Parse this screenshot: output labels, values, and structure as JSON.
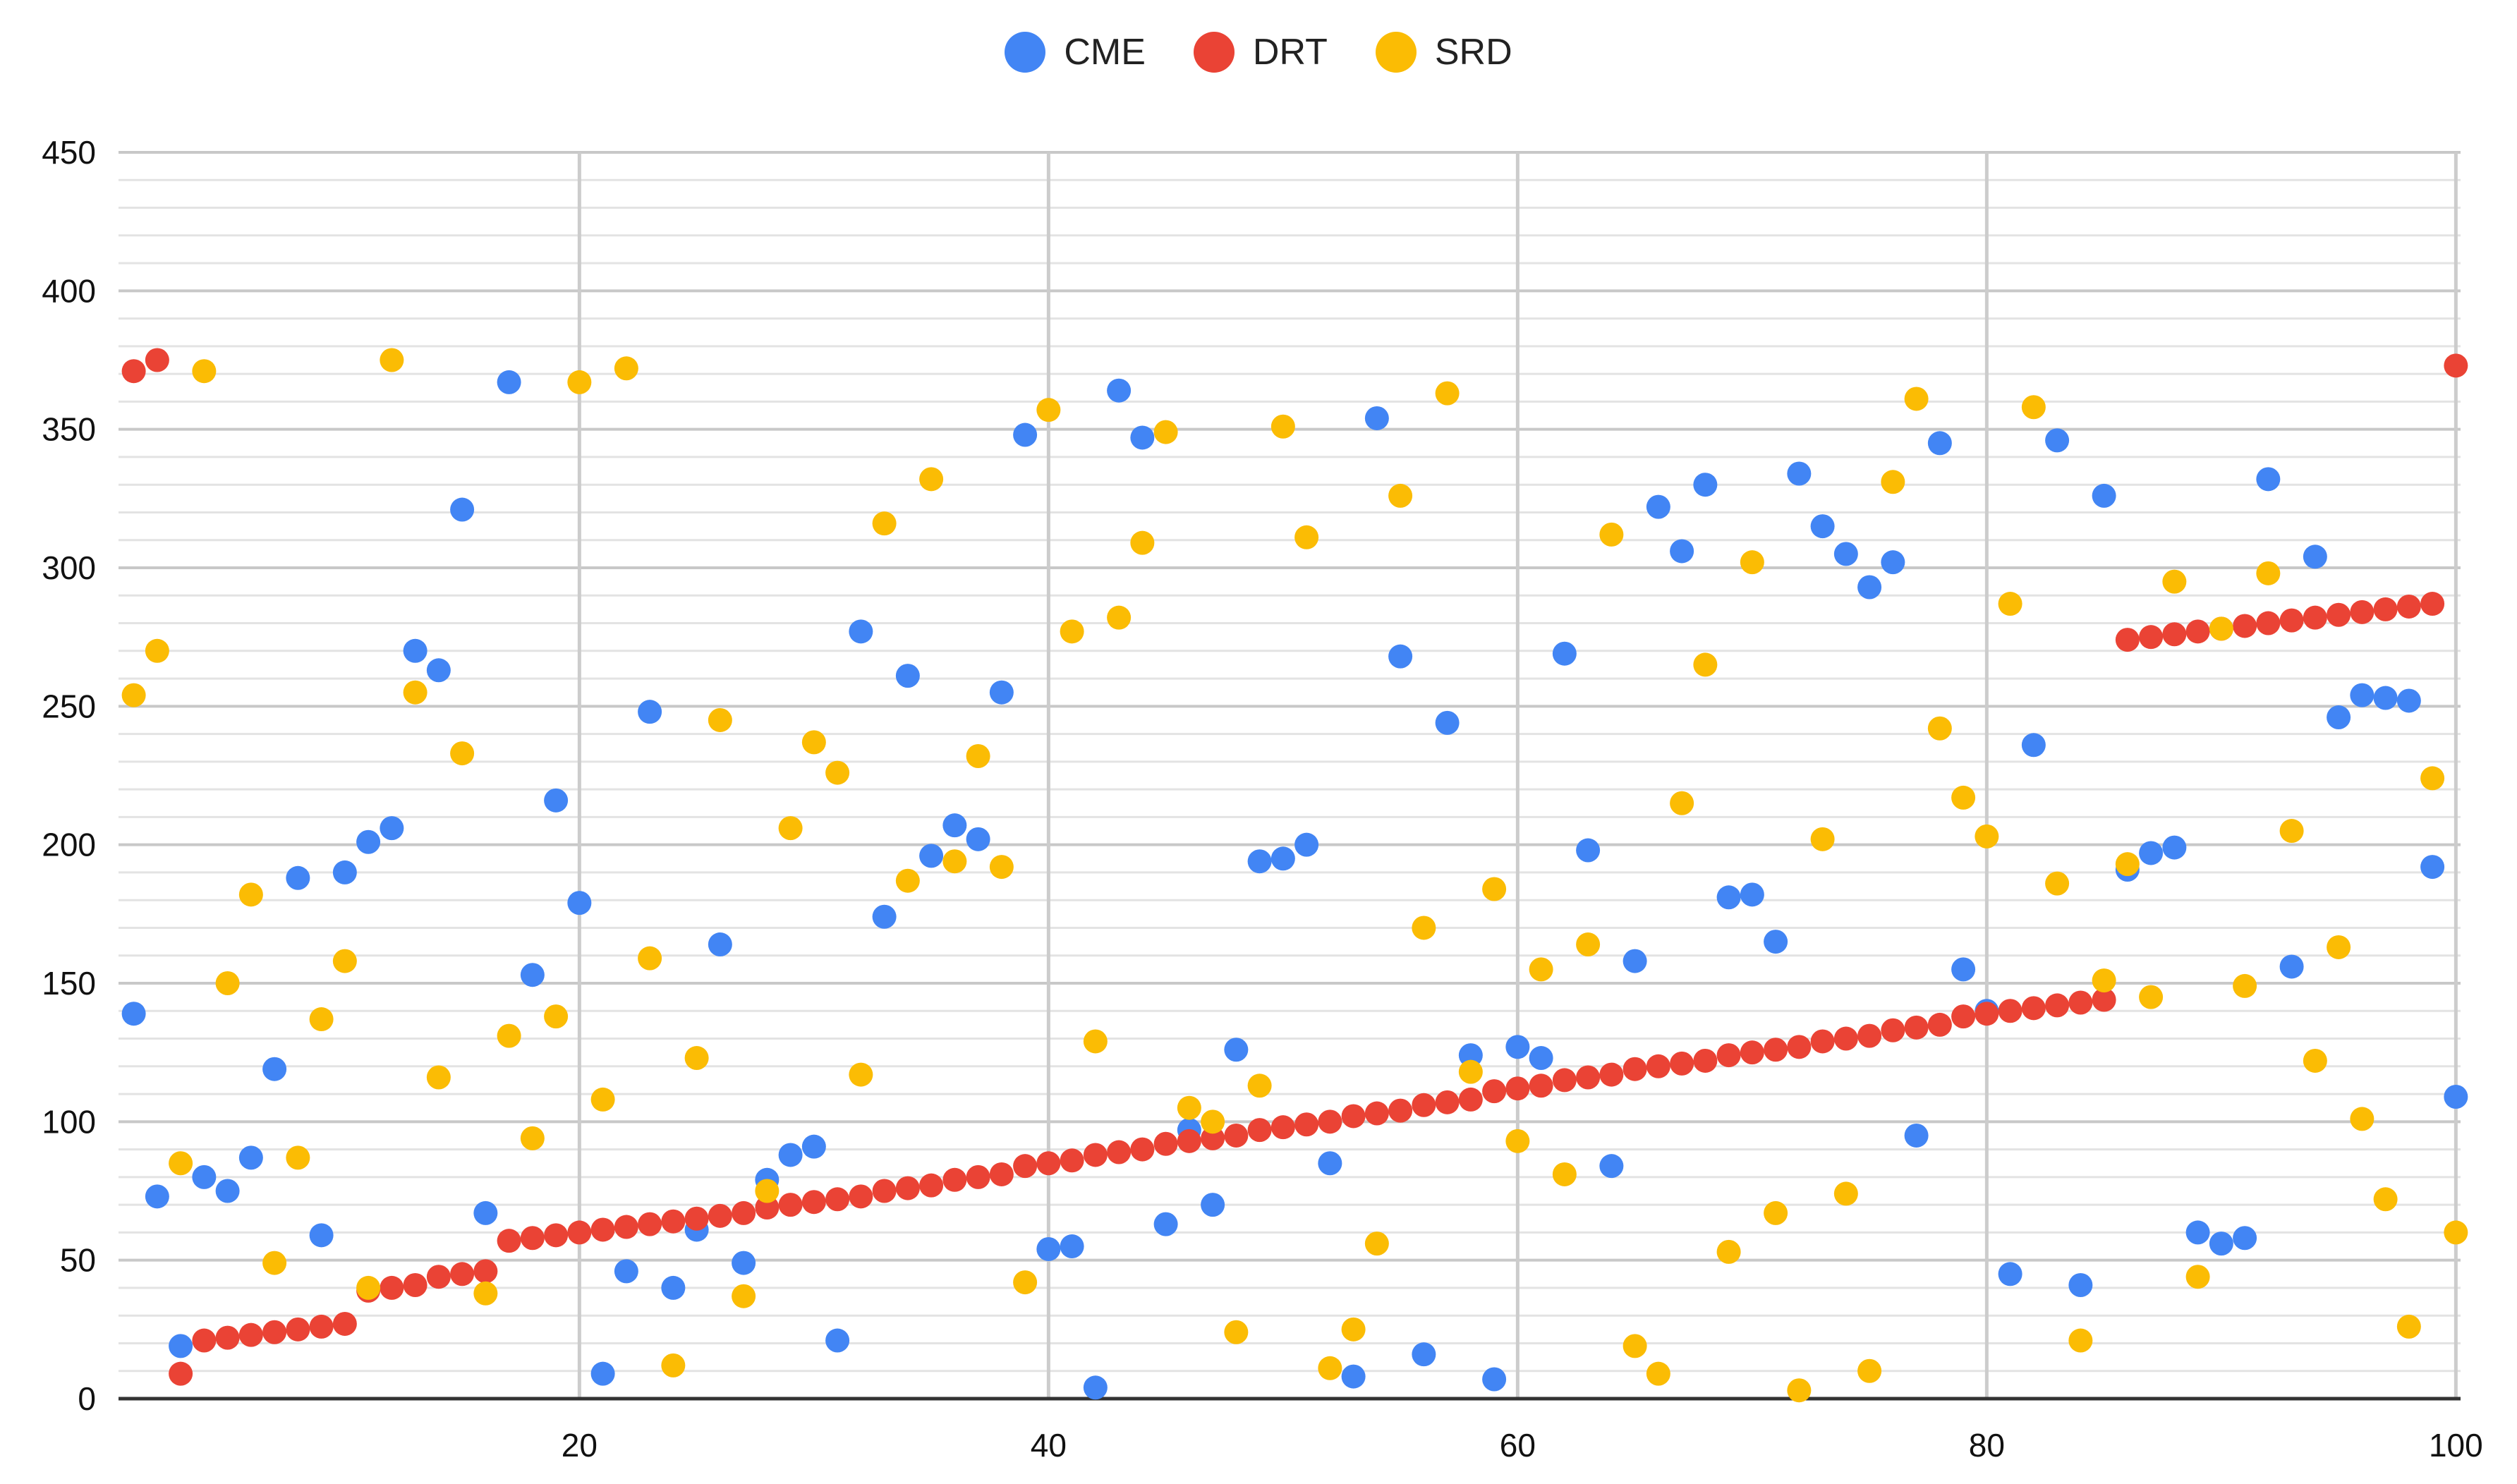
{
  "chart_data": {
    "type": "scatter",
    "title": "",
    "xlabel": "",
    "ylabel": "",
    "xlim": [
      0,
      100
    ],
    "ylim": [
      0,
      450
    ],
    "x_ticks": [
      20,
      40,
      60,
      80,
      100
    ],
    "y_ticks": [
      0,
      50,
      100,
      150,
      200,
      250,
      300,
      350,
      400,
      450
    ],
    "legend_position": "top-center",
    "grid": true,
    "series": [
      {
        "name": "CME",
        "color": "#4285F4",
        "points": [
          [
            1,
            139
          ],
          [
            2,
            73
          ],
          [
            3,
            19
          ],
          [
            4,
            80
          ],
          [
            5,
            75
          ],
          [
            6,
            87
          ],
          [
            7,
            119
          ],
          [
            8,
            188
          ],
          [
            9,
            59
          ],
          [
            10,
            190
          ],
          [
            11,
            201
          ],
          [
            12,
            206
          ],
          [
            13,
            270
          ],
          [
            14,
            263
          ],
          [
            15,
            321
          ],
          [
            16,
            67
          ],
          [
            17,
            367
          ],
          [
            18,
            153
          ],
          [
            19,
            216
          ],
          [
            20,
            179
          ],
          [
            21,
            9
          ],
          [
            22,
            46
          ],
          [
            23,
            248
          ],
          [
            24,
            40
          ],
          [
            25,
            61
          ],
          [
            26,
            164
          ],
          [
            27,
            49
          ],
          [
            28,
            79
          ],
          [
            29,
            88
          ],
          [
            30,
            91
          ],
          [
            31,
            21
          ],
          [
            32,
            277
          ],
          [
            33,
            174
          ],
          [
            34,
            261
          ],
          [
            35,
            196
          ],
          [
            36,
            207
          ],
          [
            37,
            202
          ],
          [
            38,
            255
          ],
          [
            39,
            348
          ],
          [
            40,
            54
          ],
          [
            41,
            55
          ],
          [
            42,
            4
          ],
          [
            43,
            364
          ],
          [
            44,
            347
          ],
          [
            45,
            63
          ],
          [
            46,
            97
          ],
          [
            47,
            70
          ],
          [
            48,
            126
          ],
          [
            49,
            194
          ],
          [
            50,
            195
          ],
          [
            51,
            200
          ],
          [
            52,
            85
          ],
          [
            53,
            8
          ],
          [
            54,
            354
          ],
          [
            55,
            268
          ],
          [
            56,
            16
          ],
          [
            57,
            244
          ],
          [
            58,
            124
          ],
          [
            59,
            7
          ],
          [
            60,
            127
          ],
          [
            61,
            123
          ],
          [
            62,
            269
          ],
          [
            63,
            198
          ],
          [
            64,
            84
          ],
          [
            65,
            158
          ],
          [
            66,
            322
          ],
          [
            67,
            306
          ],
          [
            68,
            330
          ],
          [
            69,
            181
          ],
          [
            70,
            182
          ],
          [
            71,
            165
          ],
          [
            72,
            334
          ],
          [
            73,
            315
          ],
          [
            74,
            305
          ],
          [
            75,
            293
          ],
          [
            76,
            302
          ],
          [
            77,
            95
          ],
          [
            78,
            345
          ],
          [
            79,
            155
          ],
          [
            80,
            140
          ],
          [
            81,
            45
          ],
          [
            82,
            236
          ],
          [
            83,
            346
          ],
          [
            84,
            41
          ],
          [
            85,
            326
          ],
          [
            86,
            191
          ],
          [
            87,
            197
          ],
          [
            88,
            199
          ],
          [
            89,
            60
          ],
          [
            90,
            56
          ],
          [
            91,
            58
          ],
          [
            92,
            332
          ],
          [
            93,
            156
          ],
          [
            94,
            304
          ],
          [
            95,
            246
          ],
          [
            96,
            254
          ],
          [
            97,
            253
          ],
          [
            98,
            252
          ],
          [
            99,
            192
          ],
          [
            100,
            109
          ]
        ]
      },
      {
        "name": "DRT",
        "color": "#EA4335",
        "points": [
          [
            1,
            371
          ],
          [
            2,
            375
          ],
          [
            3,
            9
          ],
          [
            4,
            21
          ],
          [
            5,
            22
          ],
          [
            6,
            23
          ],
          [
            7,
            24
          ],
          [
            8,
            25
          ],
          [
            9,
            26
          ],
          [
            10,
            27
          ],
          [
            11,
            39
          ],
          [
            12,
            40
          ],
          [
            13,
            41
          ],
          [
            14,
            44
          ],
          [
            15,
            45
          ],
          [
            16,
            46
          ],
          [
            17,
            57
          ],
          [
            18,
            58
          ],
          [
            19,
            59
          ],
          [
            20,
            60
          ],
          [
            21,
            61
          ],
          [
            22,
            62
          ],
          [
            23,
            63
          ],
          [
            24,
            64
          ],
          [
            25,
            65
          ],
          [
            26,
            66
          ],
          [
            27,
            67
          ],
          [
            28,
            69
          ],
          [
            29,
            70
          ],
          [
            30,
            71
          ],
          [
            31,
            72
          ],
          [
            32,
            73
          ],
          [
            33,
            75
          ],
          [
            34,
            76
          ],
          [
            35,
            77
          ],
          [
            36,
            79
          ],
          [
            37,
            80
          ],
          [
            38,
            81
          ],
          [
            39,
            84
          ],
          [
            40,
            85
          ],
          [
            41,
            86
          ],
          [
            42,
            88
          ],
          [
            43,
            89
          ],
          [
            44,
            90
          ],
          [
            45,
            92
          ],
          [
            46,
            93
          ],
          [
            47,
            94
          ],
          [
            48,
            95
          ],
          [
            49,
            97
          ],
          [
            50,
            98
          ],
          [
            51,
            99
          ],
          [
            52,
            100
          ],
          [
            53,
            102
          ],
          [
            54,
            103
          ],
          [
            55,
            104
          ],
          [
            56,
            106
          ],
          [
            57,
            107
          ],
          [
            58,
            108
          ],
          [
            59,
            111
          ],
          [
            60,
            112
          ],
          [
            61,
            113
          ],
          [
            62,
            115
          ],
          [
            63,
            116
          ],
          [
            64,
            117
          ],
          [
            65,
            119
          ],
          [
            66,
            120
          ],
          [
            67,
            121
          ],
          [
            68,
            122
          ],
          [
            69,
            124
          ],
          [
            70,
            125
          ],
          [
            71,
            126
          ],
          [
            72,
            127
          ],
          [
            73,
            129
          ],
          [
            74,
            130
          ],
          [
            75,
            131
          ],
          [
            76,
            133
          ],
          [
            77,
            134
          ],
          [
            78,
            135
          ],
          [
            79,
            138
          ],
          [
            80,
            139
          ],
          [
            81,
            140
          ],
          [
            82,
            141
          ],
          [
            83,
            142
          ],
          [
            84,
            143
          ],
          [
            85,
            144
          ],
          [
            86,
            274
          ],
          [
            87,
            275
          ],
          [
            88,
            276
          ],
          [
            89,
            277
          ],
          [
            90,
            278
          ],
          [
            91,
            279
          ],
          [
            92,
            280
          ],
          [
            93,
            281
          ],
          [
            94,
            282
          ],
          [
            95,
            283
          ],
          [
            96,
            284
          ],
          [
            97,
            285
          ],
          [
            98,
            286
          ],
          [
            99,
            287
          ],
          [
            100,
            373
          ]
        ]
      },
      {
        "name": "SRD",
        "color": "#FBBC04",
        "points": [
          [
            1,
            254
          ],
          [
            2,
            270
          ],
          [
            3,
            85
          ],
          [
            4,
            371
          ],
          [
            5,
            150
          ],
          [
            6,
            182
          ],
          [
            7,
            49
          ],
          [
            8,
            87
          ],
          [
            9,
            137
          ],
          [
            10,
            158
          ],
          [
            11,
            40
          ],
          [
            12,
            375
          ],
          [
            13,
            255
          ],
          [
            14,
            116
          ],
          [
            15,
            233
          ],
          [
            16,
            38
          ],
          [
            17,
            131
          ],
          [
            18,
            94
          ],
          [
            19,
            138
          ],
          [
            20,
            367
          ],
          [
            21,
            108
          ],
          [
            22,
            372
          ],
          [
            23,
            159
          ],
          [
            24,
            12
          ],
          [
            25,
            123
          ],
          [
            26,
            245
          ],
          [
            27,
            37
          ],
          [
            28,
            75
          ],
          [
            29,
            206
          ],
          [
            30,
            237
          ],
          [
            31,
            226
          ],
          [
            32,
            117
          ],
          [
            33,
            316
          ],
          [
            34,
            187
          ],
          [
            35,
            332
          ],
          [
            36,
            194
          ],
          [
            37,
            232
          ],
          [
            38,
            192
          ],
          [
            39,
            42
          ],
          [
            40,
            357
          ],
          [
            41,
            277
          ],
          [
            42,
            129
          ],
          [
            43,
            282
          ],
          [
            44,
            309
          ],
          [
            45,
            349
          ],
          [
            46,
            105
          ],
          [
            47,
            100
          ],
          [
            48,
            24
          ],
          [
            49,
            113
          ],
          [
            50,
            351
          ],
          [
            51,
            311
          ],
          [
            52,
            11
          ],
          [
            53,
            25
          ],
          [
            54,
            56
          ],
          [
            55,
            326
          ],
          [
            56,
            170
          ],
          [
            57,
            363
          ],
          [
            58,
            118
          ],
          [
            59,
            184
          ],
          [
            60,
            93
          ],
          [
            61,
            155
          ],
          [
            62,
            81
          ],
          [
            63,
            164
          ],
          [
            64,
            312
          ],
          [
            65,
            19
          ],
          [
            66,
            9
          ],
          [
            67,
            215
          ],
          [
            68,
            265
          ],
          [
            69,
            53
          ],
          [
            70,
            302
          ],
          [
            71,
            67
          ],
          [
            72,
            3
          ],
          [
            73,
            202
          ],
          [
            74,
            74
          ],
          [
            75,
            10
          ],
          [
            76,
            331
          ],
          [
            77,
            361
          ],
          [
            78,
            242
          ],
          [
            79,
            217
          ],
          [
            80,
            203
          ],
          [
            81,
            287
          ],
          [
            82,
            358
          ],
          [
            83,
            186
          ],
          [
            84,
            21
          ],
          [
            85,
            151
          ],
          [
            86,
            193
          ],
          [
            87,
            145
          ],
          [
            88,
            295
          ],
          [
            89,
            44
          ],
          [
            90,
            278
          ],
          [
            91,
            149
          ],
          [
            92,
            298
          ],
          [
            93,
            205
          ],
          [
            94,
            122
          ],
          [
            95,
            163
          ],
          [
            96,
            101
          ],
          [
            97,
            72
          ],
          [
            98,
            26
          ],
          [
            99,
            224
          ],
          [
            100,
            60
          ]
        ]
      }
    ]
  }
}
